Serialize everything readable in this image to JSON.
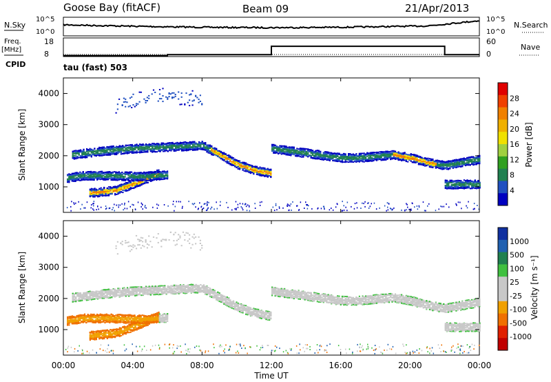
{
  "header": {
    "station": "Goose Bay (fitACF)",
    "beam": "Beam 09",
    "date": "21/Apr/2013"
  },
  "nsky_panel": {
    "left_label": "N.Sky",
    "left_ticks": [
      "10^5",
      "10^0"
    ],
    "right_label": "N.Search",
    "right_ticks": [
      "10^5",
      "10^0"
    ]
  },
  "freq_panel": {
    "left_label_top": "Freq.",
    "left_label_unit": "[MHz]",
    "left_ticks": [
      "18",
      "8"
    ],
    "right_label": "Nave",
    "right_ticks": [
      "60",
      "0"
    ],
    "cpid_label": "CPID"
  },
  "cpid_text": "tau (fast) 503",
  "x_axis": {
    "title": "Time UT",
    "ticks": [
      "00:00",
      "04:00",
      "08:00",
      "12:00",
      "16:00",
      "20:00",
      "00:00"
    ]
  },
  "power_panel": {
    "ylabel": "Slant Range [km]",
    "yticks": [
      "4000",
      "3000",
      "2000",
      "1000"
    ],
    "colorbar_label": "Power [dB]",
    "colorbar_ticks": [
      "28",
      "24",
      "20",
      "16",
      "12",
      "8",
      "4"
    ],
    "colorbar_colors": [
      "#e00000",
      "#f04000",
      "#f08000",
      "#f0b000",
      "#f0e000",
      "#a0d040",
      "#30a020",
      "#208050",
      "#2050c0",
      "#0000c0"
    ]
  },
  "velocity_panel": {
    "ylabel": "Slant Range [km]",
    "yticks": [
      "4000",
      "3000",
      "2000",
      "1000"
    ],
    "colorbar_label": "Velocity [m s⁻¹]",
    "colorbar_ticks": [
      "1000",
      "500",
      "100",
      "25",
      "-25",
      "-100",
      "-500",
      "-1000"
    ],
    "colorbar_colors": [
      "#1030a0",
      "#2060b0",
      "#208050",
      "#40c040",
      "#c8c8c8",
      "#c8c8c8",
      "#f0a000",
      "#f07000",
      "#e02000",
      "#c00000"
    ]
  },
  "chart_data": {
    "type": "heatmap",
    "x_hours_range": [
      0,
      24
    ],
    "y_range_km": [
      180,
      4500
    ],
    "grid": false,
    "power_tracks": [
      {
        "x": [
          0.5,
          2,
          4,
          6,
          8,
          9,
          10,
          11,
          12
        ],
        "y": [
          2050,
          2150,
          2250,
          2300,
          2350,
          2050,
          1750,
          1550,
          1450
        ]
      },
      {
        "x": [
          1.5,
          3,
          4.2,
          5.5
        ],
        "y": [
          820,
          900,
          1150,
          1450
        ]
      },
      {
        "x": [
          0.2,
          1.2,
          2.5,
          4.5,
          6
        ],
        "y": [
          1300,
          1380,
          1380,
          1350,
          1400
        ]
      },
      {
        "x": [
          12,
          14,
          16,
          17,
          19,
          20,
          21,
          22,
          24
        ],
        "y": [
          2250,
          2100,
          1950,
          1950,
          2050,
          1950,
          1800,
          1700,
          1900
        ]
      },
      {
        "x": [
          22,
          24
        ],
        "y": [
          1100,
          1100
        ]
      },
      {
        "x": [
          3,
          4,
          5,
          6,
          7,
          8
        ],
        "y": [
          3600,
          3800,
          3900,
          3950,
          3900,
          3800
        ]
      }
    ],
    "nsky_level": "~10^2",
    "freq_steps": [
      {
        "from": 0,
        "to": 6,
        "value": 10
      },
      {
        "from": 6,
        "to": 12,
        "value": 10.5
      },
      {
        "from": 12,
        "to": 22,
        "value": 15
      },
      {
        "from": 22,
        "to": 24,
        "value": 10.5
      }
    ]
  }
}
